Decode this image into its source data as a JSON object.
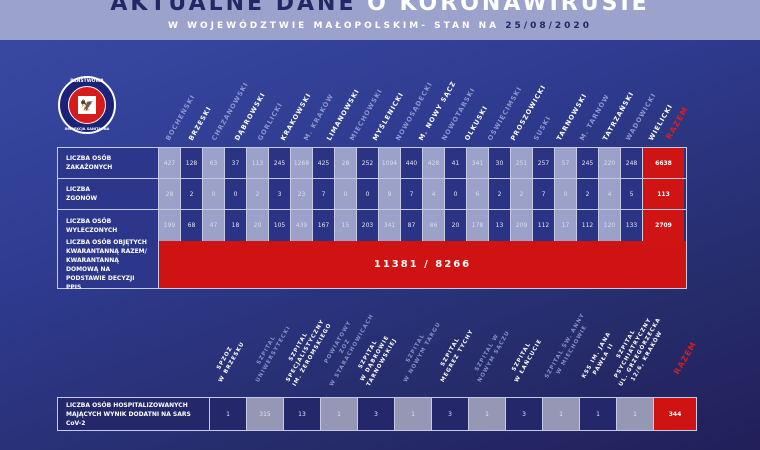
{
  "header": {
    "title_part1": "AKTUALNE DANE ",
    "title_part2": "O KORONAWIRUSIE",
    "subtitle": "W WOJEWÓDZTWIE MAŁOPOLSKIM- STAN NA ",
    "date": "25/08/2020"
  },
  "logo": {
    "top_text": "PAŃSTWOWA",
    "bottom_text": "INSPEKCJA SANITARNA",
    "emblem": "eagle-icon"
  },
  "colors": {
    "background": "#2e3b8f",
    "header_band": "#9ba3cc",
    "title_dark": "#232766",
    "light_cell": "#9ba1c8",
    "dark_cell": "#2a3384",
    "total_red": "#d01414"
  },
  "districts": {
    "columns": [
      {
        "name": "BOCHEŃSKI",
        "style": "dim"
      },
      {
        "name": "BRZESKI",
        "style": "bright"
      },
      {
        "name": "CHRZANOWSKI",
        "style": "dim"
      },
      {
        "name": "DĄBROWSKI",
        "style": "bright"
      },
      {
        "name": "GORLICKI",
        "style": "dim"
      },
      {
        "name": "KRAKOWSKI",
        "style": "bright"
      },
      {
        "name": "M. KRAKÓW",
        "style": "dim"
      },
      {
        "name": "LIMANOWSKI",
        "style": "bright"
      },
      {
        "name": "MIECHOWSKI",
        "style": "dim"
      },
      {
        "name": "MYŚLENICKI",
        "style": "bright"
      },
      {
        "name": "NOWOSĄDECKI",
        "style": "dim"
      },
      {
        "name": "M. NOWY SĄCZ",
        "style": "bright"
      },
      {
        "name": "NOWOTARSKI",
        "style": "dim"
      },
      {
        "name": "OLKUSKI",
        "style": "bright"
      },
      {
        "name": "OŚWIĘCIMSKI",
        "style": "dim"
      },
      {
        "name": "PROSZOWICKI",
        "style": "bright"
      },
      {
        "name": "SUSKI",
        "style": "dim"
      },
      {
        "name": "TARNOWSKI",
        "style": "bright"
      },
      {
        "name": "M. TARNÓW",
        "style": "dim"
      },
      {
        "name": "TATRZAŃSKI",
        "style": "bright"
      },
      {
        "name": "WADOWICKI",
        "style": "dim"
      },
      {
        "name": "WIELICKI",
        "style": "bright"
      }
    ],
    "total_label": "RAZEM",
    "rows": [
      {
        "label_line1": "LICZBA OSÓB",
        "label_line2": "ZAKAŻONYCH",
        "values": [
          "427",
          "128",
          "63",
          "37",
          "113",
          "245",
          "1268",
          "425",
          "28",
          "252",
          "1094",
          "440",
          "428",
          "41",
          "341",
          "30",
          "251",
          "257",
          "57",
          "245",
          "220",
          "248"
        ],
        "total": "6638"
      },
      {
        "label_line1": "LICZBA",
        "label_line2": "ZGONÓW",
        "values": [
          "28",
          "2",
          "0",
          "0",
          "2",
          "3",
          "23",
          "7",
          "0",
          "0",
          "9",
          "7",
          "4",
          "0",
          "6",
          "2",
          "2",
          "7",
          "0",
          "2",
          "4",
          "5"
        ],
        "total": "113"
      },
      {
        "label_line1": "LICZBA OSÓB",
        "label_line2": "WYLECZONYCH",
        "values": [
          "199",
          "68",
          "47",
          "18",
          "20",
          "105",
          "439",
          "167",
          "15",
          "203",
          "341",
          "87",
          "86",
          "20",
          "178",
          "13",
          "209",
          "112",
          "17",
          "112",
          "120",
          "133"
        ],
        "total": "2709"
      }
    ],
    "quarantine": {
      "label": "LICZBA OSÓB OBJĘTYCH KWARANTANNĄ RAZEM/ KWARANTANNĄ DOMOWĄ NA PODSTAWIE DECYZJI PPIS",
      "value": "11381 / 8266"
    }
  },
  "hospitals": {
    "columns": [
      {
        "name": "SPZOZ\nW BRZESKU",
        "style": "bright"
      },
      {
        "name": "SZPITAL\nUNIWERSYTECKI",
        "style": "dim"
      },
      {
        "name": "SZPITAL\nSPECJALISTYCZNY\nIM. ŻEROMSKIEGO",
        "style": "bright"
      },
      {
        "name": "POWIATOWY\nZOZ\nW STARACHOWICACH",
        "style": "dim"
      },
      {
        "name": "SZPITAL\nW DĄBROWIE\nTARNOWSKIEJ",
        "style": "bright"
      },
      {
        "name": "SZPITAL\nW NOWYM TARGU",
        "style": "dim"
      },
      {
        "name": "SZPITAL\nMEGREZ TYCHY",
        "style": "bright"
      },
      {
        "name": "SZPITAL W\nNOWYM SĄCZU",
        "style": "dim"
      },
      {
        "name": "SZPITAL\nW ŁAŃCUCIE",
        "style": "bright"
      },
      {
        "name": "SZPITAL ŚW. ANNY\nW MIECHOWIE",
        "style": "dim"
      },
      {
        "name": "KSS IM. JANA\nPAWŁA II",
        "style": "bright"
      },
      {
        "name": "SZPITAL\nPSYCHIATRYCZNY\nUL. GRZEGÓRZECKA\n12/6, KRAKÓW",
        "style": "bright"
      }
    ],
    "total_label": "RAZEM",
    "row": {
      "label_line1": "LICZBA OSÓB HOSPITALIZOWANYCH",
      "label_line2": "MAJĄCYCH WYNIK DODATNI NA SARS CoV-2",
      "values": [
        "1",
        "315",
        "13",
        "1",
        "3",
        "1",
        "3",
        "1",
        "3",
        "1",
        "1",
        "1"
      ],
      "total": "344"
    }
  }
}
